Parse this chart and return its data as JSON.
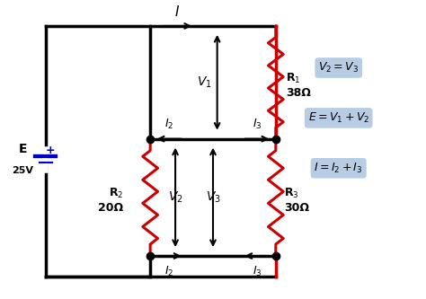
{
  "bg_color": "#ffffff",
  "wire_color": "#000000",
  "resistor_color": "#cc0000",
  "battery_color": "#0000cc",
  "equation_bg": "#b8cce4",
  "figsize": [
    4.74,
    3.33
  ],
  "dpi": 100,
  "equations": [
    "$V_2 = V_3$",
    "$E = V_1 + V_2$",
    "$I = I_2 + I_3$"
  ],
  "battery_label": "E\n25V",
  "r1_label": "R$_1$\n38Ω",
  "r2_label": "R$_2$\n20Ω",
  "r3_label": "R$_3$\n30Ω"
}
